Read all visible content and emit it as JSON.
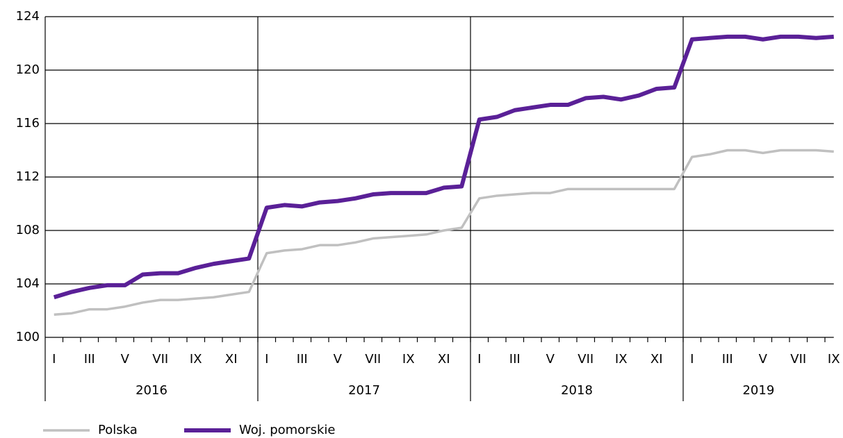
{
  "chart_data": {
    "type": "line",
    "categories": [
      "I",
      null,
      "III",
      null,
      "V",
      null,
      "VII",
      null,
      "IX",
      null,
      "XI",
      null,
      "I",
      null,
      "III",
      null,
      "V",
      null,
      "VII",
      null,
      "IX",
      null,
      "XI",
      null,
      "I",
      null,
      "III",
      null,
      "V",
      null,
      "VII",
      null,
      "IX",
      null,
      "XI",
      null,
      "I",
      null,
      "III",
      null,
      "V",
      null,
      "VII",
      null,
      "IX"
    ],
    "x_groups": [
      "2016",
      "2017",
      "2018",
      "2019"
    ],
    "series": [
      {
        "name": "Polska",
        "color": "#c0c0c0",
        "values": [
          101.7,
          101.8,
          102.1,
          102.1,
          102.3,
          102.6,
          102.8,
          102.8,
          102.9,
          103.0,
          103.2,
          103.4,
          106.3,
          106.5,
          106.6,
          106.9,
          106.9,
          107.1,
          107.4,
          107.5,
          107.6,
          107.7,
          108.0,
          108.2,
          110.4,
          110.6,
          110.7,
          110.8,
          110.8,
          111.1,
          111.1,
          111.1,
          111.1,
          111.1,
          111.1,
          111.1,
          113.5,
          113.7,
          114.0,
          114.0,
          113.8,
          114.0,
          114.0,
          114.0,
          113.9
        ]
      },
      {
        "name": "Woj. pomorskie",
        "color": "#5a2097",
        "values": [
          103.0,
          103.4,
          103.7,
          103.9,
          103.9,
          104.7,
          104.8,
          104.8,
          105.2,
          105.5,
          105.7,
          105.9,
          109.7,
          109.9,
          109.8,
          110.1,
          110.2,
          110.4,
          110.7,
          110.8,
          110.8,
          110.8,
          111.2,
          111.3,
          116.3,
          116.5,
          117.0,
          117.2,
          117.4,
          117.4,
          117.9,
          118.0,
          117.8,
          118.1,
          118.6,
          118.7,
          122.3,
          122.4,
          122.5,
          122.5,
          122.3,
          122.5,
          122.5,
          122.4,
          122.5
        ]
      }
    ],
    "ylim": [
      100,
      124
    ],
    "yticks": [
      100,
      104,
      108,
      112,
      116,
      120,
      124
    ],
    "grid": true,
    "legend": "bottom"
  }
}
